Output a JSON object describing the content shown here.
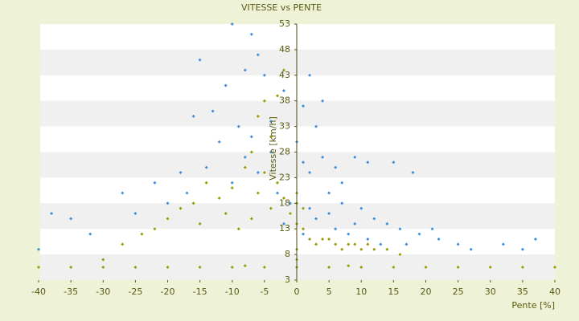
{
  "chart_data": {
    "type": "scatter",
    "title": "VITESSE vs PENTE",
    "x_label": "Pente [%]",
    "y_label": "Vitesse [km/h]",
    "xlim": [
      -40,
      40
    ],
    "xticks": [
      -40,
      -35,
      -30,
      -25,
      -20,
      -15,
      -10,
      -5,
      0,
      5,
      10,
      15,
      20,
      25,
      30,
      35,
      40
    ],
    "ylim": [
      3,
      53
    ],
    "yticks": [
      3,
      8,
      13,
      18,
      23,
      28,
      33,
      38,
      43,
      48,
      53
    ],
    "grid": true,
    "series": [
      {
        "color": "#3a8fdc",
        "x": [
          -10,
          -7,
          -6,
          -8,
          -11,
          -15,
          -5,
          -13,
          -16,
          -9,
          -12,
          -7,
          -4,
          -14,
          -18,
          -22,
          -27,
          -25,
          -35,
          -38,
          -32,
          -40,
          -20,
          -17,
          -10,
          -6,
          -3,
          1,
          2,
          4,
          6,
          9,
          11,
          15,
          18,
          4,
          2,
          3,
          5,
          7,
          10,
          12,
          14,
          16,
          19,
          21,
          22,
          25,
          27,
          32,
          35,
          37,
          3,
          6,
          8,
          11,
          2,
          5,
          9,
          13,
          17,
          1,
          -2,
          -1,
          0,
          -4,
          -2,
          1,
          7,
          -8
        ],
        "y": [
          53,
          51,
          47,
          44,
          41,
          46,
          43,
          36,
          35,
          33,
          30,
          31,
          28,
          25,
          24,
          22,
          20,
          16,
          15,
          16,
          12,
          9,
          18,
          20,
          22,
          24,
          20,
          26,
          24,
          27,
          25,
          27,
          26,
          26,
          24,
          38,
          43,
          33,
          20,
          18,
          17,
          15,
          14,
          13,
          12,
          13,
          11,
          10,
          9,
          10,
          9,
          11,
          15,
          13,
          12,
          11,
          17,
          16,
          14,
          10,
          10,
          12,
          14,
          18,
          30,
          34,
          40,
          37,
          22,
          27
        ]
      },
      {
        "color": "#9a9a00",
        "x": [
          -5,
          -6,
          -4,
          -7,
          -8,
          -5,
          -3,
          -6,
          -10,
          -12,
          -14,
          -16,
          -18,
          -20,
          -22,
          -24,
          -27,
          -30,
          -15,
          -11,
          -9,
          -7,
          -4,
          -2,
          0,
          0,
          1,
          -1,
          0,
          1,
          2,
          4,
          6,
          8,
          10,
          12,
          14,
          16,
          3,
          5,
          7,
          9,
          11,
          -2,
          -3,
          -20,
          -30,
          -35,
          -40,
          -15,
          -10,
          -5,
          0,
          5,
          10,
          15,
          20,
          25,
          30,
          35,
          40,
          -25,
          0,
          0,
          -8,
          8
        ],
        "y": [
          38,
          35,
          31,
          28,
          25,
          24,
          22,
          20,
          21,
          19,
          22,
          18,
          17,
          15,
          13,
          12,
          10,
          7,
          14,
          16,
          13,
          15,
          17,
          19,
          18,
          20,
          17,
          16,
          14,
          13,
          11,
          11,
          10,
          10,
          9,
          9,
          9,
          8,
          10,
          11,
          9,
          10,
          10,
          44,
          39,
          5.5,
          5.5,
          5.5,
          5.5,
          5.5,
          5.5,
          5.5,
          5.5,
          5.5,
          5.5,
          5.5,
          5.5,
          5.5,
          5.5,
          5.5,
          5.5,
          5.5,
          7,
          9,
          5.8,
          5.8
        ]
      }
    ]
  }
}
